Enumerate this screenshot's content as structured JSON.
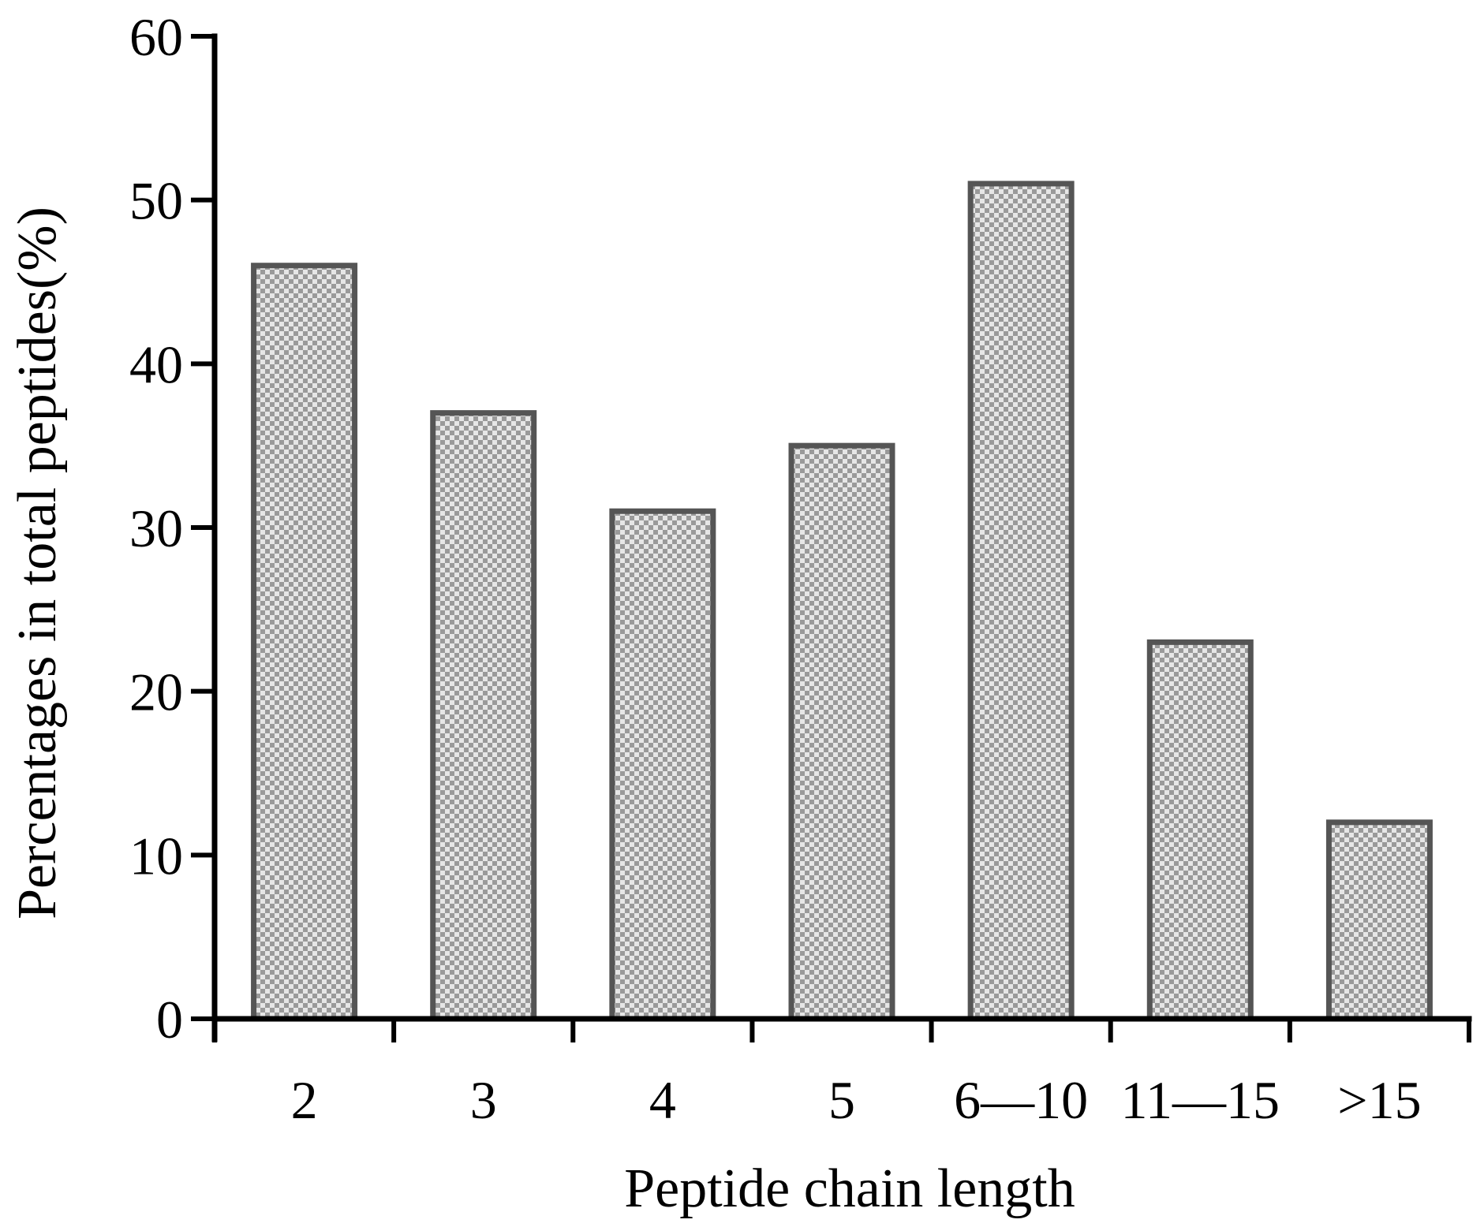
{
  "chart_data": {
    "type": "bar",
    "categories": [
      "2",
      "3",
      "4",
      "5",
      "6—10",
      "11—15",
      ">15"
    ],
    "values": [
      46,
      37,
      31,
      35,
      51,
      23,
      12
    ],
    "title": "",
    "xlabel": "Peptide chain length",
    "ylabel": "Percentages in total peptides(%)",
    "ylim": [
      0,
      60
    ],
    "yticks": [
      0,
      10,
      20,
      30,
      40,
      50,
      60
    ],
    "grid": false,
    "legend": "none",
    "colors": {
      "bar_fill": "#9a9a9a",
      "bar_fill_alt": "#e6e6e6",
      "bar_edge": "#555555",
      "axis": "#000000"
    }
  }
}
